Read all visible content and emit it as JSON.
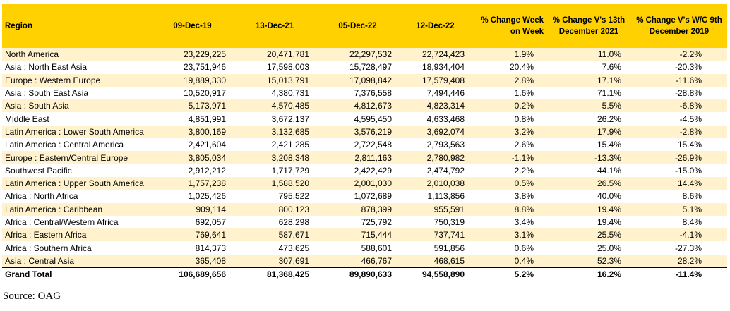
{
  "table": {
    "headers": {
      "region": "Region",
      "d1": "09-Dec-19",
      "d2": "13-Dec-21",
      "d3": "05-Dec-22",
      "d4": "12-Dec-22",
      "p1": "% Change Week on Week",
      "p2": "% Change V's 13th December 2021",
      "p3": "% Change V's W/C 9th December 2019"
    },
    "rows": [
      {
        "region": "North America",
        "d1": "23,229,225",
        "d2": "20,471,781",
        "d3": "22,297,532",
        "d4": "22,724,423",
        "p1": "1.9%",
        "p2": "11.0%",
        "p3": "-2.2%"
      },
      {
        "region": "Asia : North East Asia",
        "d1": "23,751,946",
        "d2": "17,598,003",
        "d3": "15,728,497",
        "d4": "18,934,404",
        "p1": "20.4%",
        "p2": "7.6%",
        "p3": "-20.3%"
      },
      {
        "region": "Europe : Western Europe",
        "d1": "19,889,330",
        "d2": "15,013,791",
        "d3": "17,098,842",
        "d4": "17,579,408",
        "p1": "2.8%",
        "p2": "17.1%",
        "p3": "-11.6%"
      },
      {
        "region": "Asia : South East Asia",
        "d1": "10,520,917",
        "d2": "4,380,731",
        "d3": "7,376,558",
        "d4": "7,494,446",
        "p1": "1.6%",
        "p2": "71.1%",
        "p3": "-28.8%"
      },
      {
        "region": "Asia : South Asia",
        "d1": "5,173,971",
        "d2": "4,570,485",
        "d3": "4,812,673",
        "d4": "4,823,314",
        "p1": "0.2%",
        "p2": "5.5%",
        "p3": "-6.8%"
      },
      {
        "region": "Middle East",
        "d1": "4,851,991",
        "d2": "3,672,137",
        "d3": "4,595,450",
        "d4": "4,633,468",
        "p1": "0.8%",
        "p2": "26.2%",
        "p3": "-4.5%"
      },
      {
        "region": "Latin America : Lower South America",
        "d1": "3,800,169",
        "d2": "3,132,685",
        "d3": "3,576,219",
        "d4": "3,692,074",
        "p1": "3.2%",
        "p2": "17.9%",
        "p3": "-2.8%"
      },
      {
        "region": "Latin America : Central America",
        "d1": "2,421,604",
        "d2": "2,421,285",
        "d3": "2,722,548",
        "d4": "2,793,563",
        "p1": "2.6%",
        "p2": "15.4%",
        "p3": "15.4%"
      },
      {
        "region": "Europe : Eastern/Central Europe",
        "d1": "3,805,034",
        "d2": "3,208,348",
        "d3": "2,811,163",
        "d4": "2,780,982",
        "p1": "-1.1%",
        "p2": "-13.3%",
        "p3": "-26.9%"
      },
      {
        "region": "Southwest Pacific",
        "d1": "2,912,212",
        "d2": "1,717,729",
        "d3": "2,422,429",
        "d4": "2,474,792",
        "p1": "2.2%",
        "p2": "44.1%",
        "p3": "-15.0%"
      },
      {
        "region": "Latin America : Upper South America",
        "d1": "1,757,238",
        "d2": "1,588,520",
        "d3": "2,001,030",
        "d4": "2,010,038",
        "p1": "0.5%",
        "p2": "26.5%",
        "p3": "14.4%"
      },
      {
        "region": "Africa : North Africa",
        "d1": "1,025,426",
        "d2": "795,522",
        "d3": "1,072,689",
        "d4": "1,113,856",
        "p1": "3.8%",
        "p2": "40.0%",
        "p3": "8.6%"
      },
      {
        "region": "Latin America : Caribbean",
        "d1": "909,114",
        "d2": "800,123",
        "d3": "878,399",
        "d4": "955,591",
        "p1": "8.8%",
        "p2": "19.4%",
        "p3": "5.1%"
      },
      {
        "region": "Africa : Central/Western Africa",
        "d1": "692,057",
        "d2": "628,298",
        "d3": "725,792",
        "d4": "750,319",
        "p1": "3.4%",
        "p2": "19.4%",
        "p3": "8.4%"
      },
      {
        "region": "Africa : Eastern Africa",
        "d1": "769,641",
        "d2": "587,671",
        "d3": "715,444",
        "d4": "737,741",
        "p1": "3.1%",
        "p2": "25.5%",
        "p3": "-4.1%"
      },
      {
        "region": "Africa : Southern Africa",
        "d1": "814,373",
        "d2": "473,625",
        "d3": "588,601",
        "d4": "591,856",
        "p1": "0.6%",
        "p2": "25.0%",
        "p3": "-27.3%"
      },
      {
        "region": "Asia : Central Asia",
        "d1": "365,408",
        "d2": "307,691",
        "d3": "466,767",
        "d4": "468,615",
        "p1": "0.4%",
        "p2": "52.3%",
        "p3": "28.2%"
      }
    ],
    "total": {
      "region": "Grand Total",
      "d1": "106,689,656",
      "d2": "81,368,425",
      "d3": "89,890,633",
      "d4": "94,558,890",
      "p1": "5.2%",
      "p2": "16.2%",
      "p3": "-11.4%"
    }
  },
  "source": "Source: OAG",
  "colors": {
    "header": "#ffd100",
    "band": "#fff2cc"
  }
}
